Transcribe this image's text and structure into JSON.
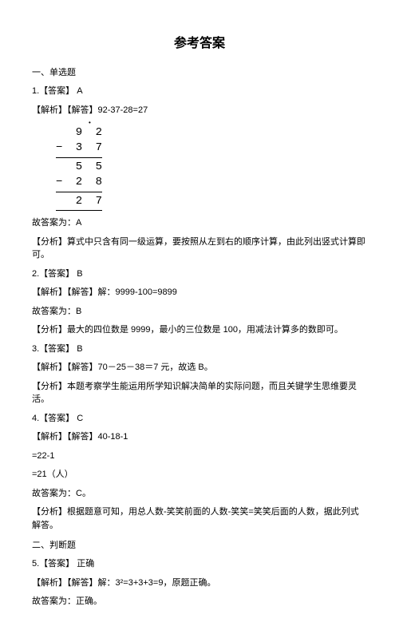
{
  "title": "参考答案",
  "section1_header": "一、单选题",
  "q1": {
    "answer_line": "1.【答案】 A",
    "explain_line": "【解析】【解答】92-37-28=27",
    "calc": {
      "r1": "  9 2",
      "r2": "− 3 7",
      "r3": "  5 5",
      "r4": "− 2 8",
      "r5": "  2 7"
    },
    "result_line": "故答案为：A",
    "analysis_line": "【分析】算式中只含有同一级运算，要按照从左到右的顺序计算，由此列出竖式计算即可。"
  },
  "q2": {
    "answer_line": "2.【答案】 B",
    "explain_line": "【解析】【解答】解：9999-100=9899",
    "result_line": "故答案为：B",
    "analysis_line": "【分析】最大的四位数是 9999，最小的三位数是 100，用减法计算多的数即可。"
  },
  "q3": {
    "answer_line": "3.【答案】 B",
    "explain_line": "【解析】【解答】70－25－38＝7 元，故选 B。",
    "analysis_line": "【分析】本题考察学生能运用所学知识解决简单的实际问题，而且关键学生思维要灵活。"
  },
  "q4": {
    "answer_line": "4.【答案】 C",
    "explain_line": "【解析】【解答】40-18-1",
    "step1": "=22-1",
    "step2": "=21（人）",
    "result_line": "故答案为：C。",
    "analysis_line": "【分析】根据题意可知，用总人数-笑笑前面的人数-笑笑=笑笑后面的人数，据此列式解答。"
  },
  "section2_header": "二、判断题",
  "q5": {
    "answer_line": "5.【答案】 正确",
    "explain_line": "【解析】【解答】解：3²=3+3+3=9，原题正确。",
    "result_line": "故答案为：正确。"
  }
}
